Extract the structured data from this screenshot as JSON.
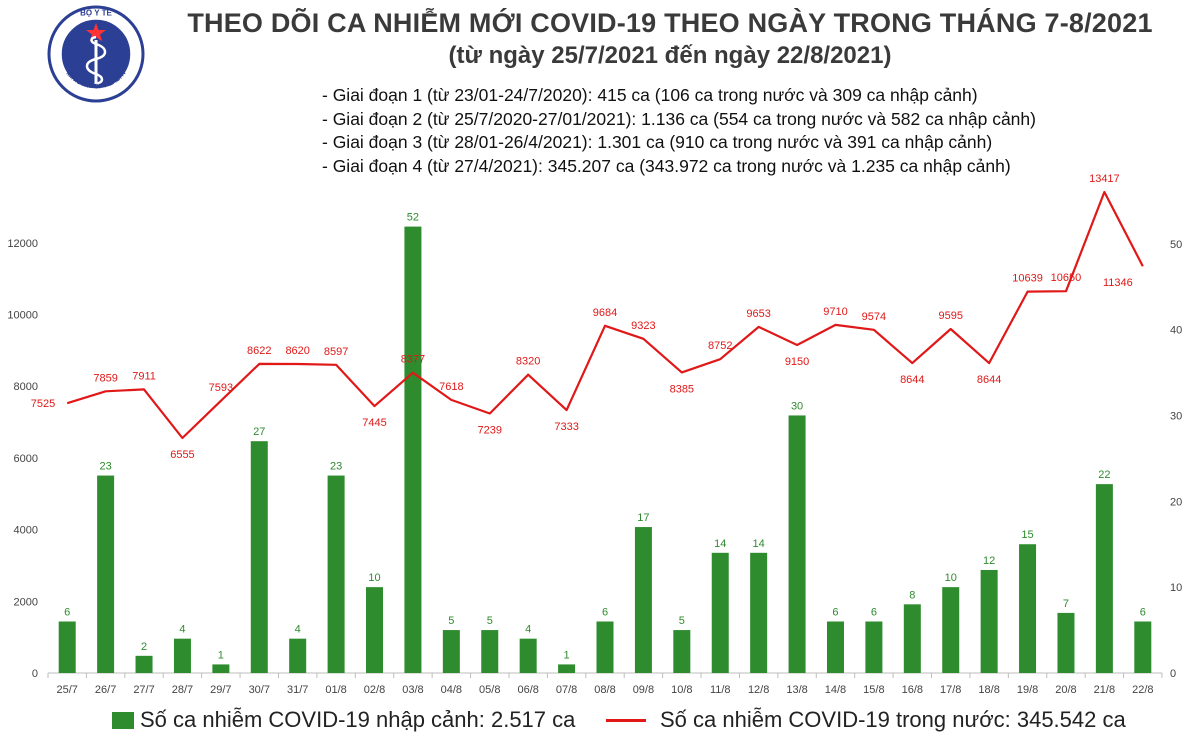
{
  "header": {
    "title": "THEO DÕI CA NHIỄM MỚI COVID-19 THEO NGÀY TRONG THÁNG 7-8/2021",
    "subtitle": "(từ ngày 25/7/2021 đến ngày 22/8/2021)",
    "logo": {
      "top_text": "BỘ Y TẾ",
      "bottom_text": "MINISTRY OF HEALTH",
      "icon": "caduceus-star-emblem"
    }
  },
  "phases": [
    "- Giai đoạn 1 (từ 23/01-24/7/2020): 415 ca (106 ca trong nước và 309 ca nhập cảnh)",
    "- Giai đoạn 2 (từ 25/7/2020-27/01/2021): 1.136 ca (554 ca trong nước và 582 ca nhập cảnh)",
    "- Giai đoạn 3 (từ 28/01-26/4/2021): 1.301 ca (910 ca trong nước và 391 ca nhập cảnh)",
    "- Giai đoạn 4 (từ 27/4/2021): 345.207 ca (343.972 ca trong nước và 1.235 ca nhập cảnh)"
  ],
  "legend": {
    "bar_label": "Số ca nhiễm COVID-19 nhập cảnh: 2.517 ca",
    "line_label": "Số ca nhiễm COVID-19 trong nước: 345.542 ca"
  },
  "colors": {
    "bar": "#2e8b2e",
    "bar_label": "#2e8b2e",
    "line": "#e01818",
    "line_label": "#e01818",
    "logo": "#2b3f94"
  },
  "chart_data": {
    "type": "bar+line",
    "categories": [
      "25/7",
      "26/7",
      "27/7",
      "28/7",
      "29/7",
      "30/7",
      "31/7",
      "01/8",
      "02/8",
      "03/8",
      "04/8",
      "05/8",
      "06/8",
      "07/8",
      "08/8",
      "09/8",
      "10/8",
      "11/8",
      "12/8",
      "13/8",
      "14/8",
      "15/8",
      "16/8",
      "17/8",
      "18/8",
      "19/8",
      "20/8",
      "21/8",
      "22/8"
    ],
    "series": [
      {
        "name": "Số ca nhiễm COVID-19 nhập cảnh: 2.517 ca",
        "kind": "bar",
        "axis": "right",
        "values": [
          6,
          23,
          2,
          4,
          1,
          27,
          4,
          23,
          10,
          52,
          5,
          5,
          4,
          1,
          6,
          17,
          5,
          14,
          14,
          30,
          6,
          6,
          8,
          10,
          12,
          15,
          7,
          22,
          6
        ]
      },
      {
        "name": "Số ca nhiễm COVID-19 trong nước: 345.542 ca",
        "kind": "line",
        "axis": "left",
        "values": [
          7525,
          7859,
          7911,
          6555,
          7593,
          8622,
          8620,
          8597,
          7445,
          8377,
          7618,
          7239,
          8320,
          7333,
          9684,
          9323,
          8385,
          8752,
          9653,
          9150,
          9710,
          9574,
          8644,
          9595,
          8644,
          10639,
          10650,
          13417,
          11346
        ]
      }
    ],
    "y_left": {
      "ticks": [
        0,
        2000,
        4000,
        6000,
        8000,
        10000,
        12000
      ],
      "ylim": [
        0,
        14000
      ]
    },
    "y_right": {
      "ticks": [
        0,
        10,
        20,
        30,
        40,
        50
      ],
      "ylim": [
        0,
        56
      ]
    },
    "legend_position": "bottom",
    "grid": false
  }
}
